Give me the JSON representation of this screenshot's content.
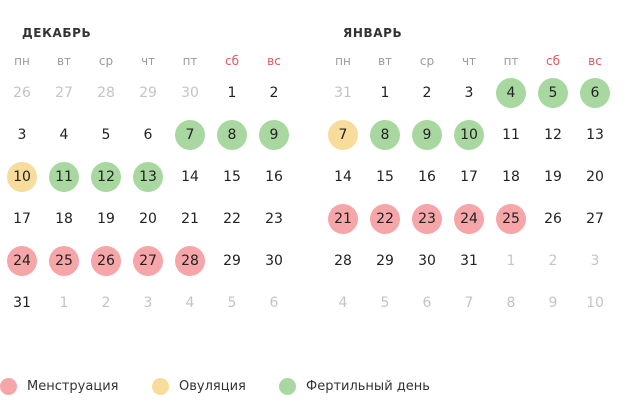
{
  "weekdays": [
    {
      "label": "пн",
      "weekend": false
    },
    {
      "label": "вт",
      "weekend": false
    },
    {
      "label": "ср",
      "weekend": false
    },
    {
      "label": "чт",
      "weekend": false
    },
    {
      "label": "пт",
      "weekend": false
    },
    {
      "label": "сб",
      "weekend": true
    },
    {
      "label": "вс",
      "weekend": true
    }
  ],
  "colors": {
    "menstruation": "#f6a6a8",
    "ovulation": "#f8dc9c",
    "fertile": "#a8d8a0",
    "weekend_header": "#e8555e",
    "muted_day": "#c4c4c4"
  },
  "months": [
    {
      "title": "ДЕКАБРЬ",
      "weeks": [
        [
          {
            "d": "26",
            "muted": true
          },
          {
            "d": "27",
            "muted": true
          },
          {
            "d": "28",
            "muted": true
          },
          {
            "d": "29",
            "muted": true
          },
          {
            "d": "30",
            "muted": true
          },
          {
            "d": "1"
          },
          {
            "d": "2"
          }
        ],
        [
          {
            "d": "3"
          },
          {
            "d": "4"
          },
          {
            "d": "5"
          },
          {
            "d": "6"
          },
          {
            "d": "7",
            "type": "fertile"
          },
          {
            "d": "8",
            "type": "fertile"
          },
          {
            "d": "9",
            "type": "fertile"
          }
        ],
        [
          {
            "d": "10",
            "type": "ovulation"
          },
          {
            "d": "11",
            "type": "fertile"
          },
          {
            "d": "12",
            "type": "fertile"
          },
          {
            "d": "13",
            "type": "fertile"
          },
          {
            "d": "14"
          },
          {
            "d": "15"
          },
          {
            "d": "16"
          }
        ],
        [
          {
            "d": "17"
          },
          {
            "d": "18"
          },
          {
            "d": "19"
          },
          {
            "d": "20"
          },
          {
            "d": "21"
          },
          {
            "d": "22"
          },
          {
            "d": "23"
          }
        ],
        [
          {
            "d": "24",
            "type": "menstruation"
          },
          {
            "d": "25",
            "type": "menstruation"
          },
          {
            "d": "26",
            "type": "menstruation"
          },
          {
            "d": "27",
            "type": "menstruation"
          },
          {
            "d": "28",
            "type": "menstruation"
          },
          {
            "d": "29"
          },
          {
            "d": "30"
          }
        ],
        [
          {
            "d": "31"
          },
          {
            "d": "1",
            "muted": true
          },
          {
            "d": "2",
            "muted": true
          },
          {
            "d": "3",
            "muted": true
          },
          {
            "d": "4",
            "muted": true
          },
          {
            "d": "5",
            "muted": true
          },
          {
            "d": "6",
            "muted": true
          }
        ]
      ]
    },
    {
      "title": "ЯНВАРЬ",
      "weeks": [
        [
          {
            "d": "31",
            "muted": true
          },
          {
            "d": "1"
          },
          {
            "d": "2"
          },
          {
            "d": "3"
          },
          {
            "d": "4",
            "type": "fertile"
          },
          {
            "d": "5",
            "type": "fertile"
          },
          {
            "d": "6",
            "type": "fertile"
          }
        ],
        [
          {
            "d": "7",
            "type": "ovulation"
          },
          {
            "d": "8",
            "type": "fertile"
          },
          {
            "d": "9",
            "type": "fertile"
          },
          {
            "d": "10",
            "type": "fertile"
          },
          {
            "d": "11"
          },
          {
            "d": "12"
          },
          {
            "d": "13"
          }
        ],
        [
          {
            "d": "14"
          },
          {
            "d": "15"
          },
          {
            "d": "16"
          },
          {
            "d": "17"
          },
          {
            "d": "18"
          },
          {
            "d": "19"
          },
          {
            "d": "20"
          }
        ],
        [
          {
            "d": "21",
            "type": "menstruation"
          },
          {
            "d": "22",
            "type": "menstruation"
          },
          {
            "d": "23",
            "type": "menstruation"
          },
          {
            "d": "24",
            "type": "menstruation"
          },
          {
            "d": "25",
            "type": "menstruation"
          },
          {
            "d": "26"
          },
          {
            "d": "27"
          }
        ],
        [
          {
            "d": "28"
          },
          {
            "d": "29"
          },
          {
            "d": "30"
          },
          {
            "d": "31"
          },
          {
            "d": "1",
            "muted": true
          },
          {
            "d": "2",
            "muted": true
          },
          {
            "d": "3",
            "muted": true
          }
        ],
        [
          {
            "d": "4",
            "muted": true
          },
          {
            "d": "5",
            "muted": true
          },
          {
            "d": "6",
            "muted": true
          },
          {
            "d": "7",
            "muted": true
          },
          {
            "d": "8",
            "muted": true
          },
          {
            "d": "9",
            "muted": true
          },
          {
            "d": "10",
            "muted": true
          }
        ]
      ]
    }
  ],
  "legend": [
    {
      "type": "menstruation",
      "label": "Менструация"
    },
    {
      "type": "ovulation",
      "label": "Овуляция"
    },
    {
      "type": "fertile",
      "label": "Фертильный день"
    }
  ]
}
